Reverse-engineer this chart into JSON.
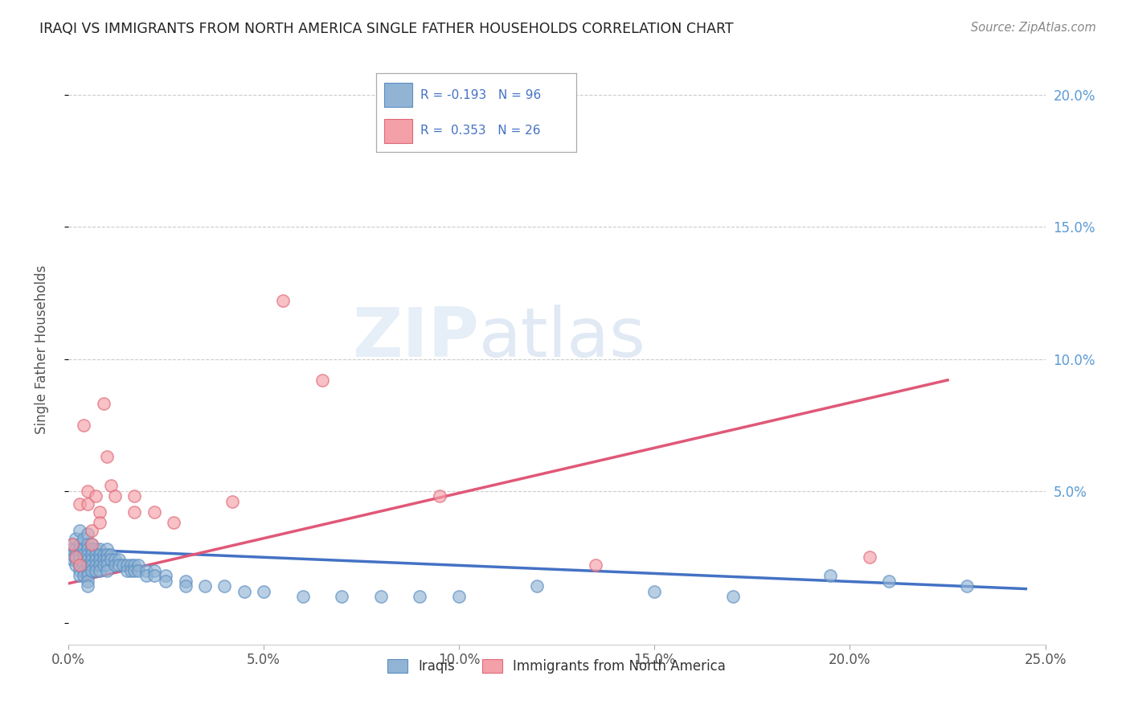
{
  "title": "IRAQI VS IMMIGRANTS FROM NORTH AMERICA SINGLE FATHER HOUSEHOLDS CORRELATION CHART",
  "source": "Source: ZipAtlas.com",
  "ylabel": "Single Father Households",
  "xlim": [
    0.0,
    0.25
  ],
  "ylim": [
    -0.008,
    0.215
  ],
  "yticks": [
    0.0,
    0.05,
    0.1,
    0.15,
    0.2
  ],
  "right_ytick_labels": [
    "",
    "5.0%",
    "10.0%",
    "15.0%",
    "20.0%"
  ],
  "xticks": [
    0.0,
    0.05,
    0.1,
    0.15,
    0.2,
    0.25
  ],
  "xtick_labels": [
    "0.0%",
    "5.0%",
    "10.0%",
    "15.0%",
    "20.0%",
    "25.0%"
  ],
  "iraqi_color": "#92b4d4",
  "immigrant_color": "#f4a0a8",
  "iraqi_edge_color": "#5b8fc4",
  "immigrant_edge_color": "#e06878",
  "iraqi_trend_color": "#4472c4",
  "immigrant_trend_color": "#e05878",
  "iraqi_r": -0.193,
  "iraqi_n": 96,
  "immigrant_r": 0.353,
  "immigrant_n": 26,
  "watermark_zip": "ZIP",
  "watermark_atlas": "atlas",
  "legend_r_color": "#4472c4",
  "legend_n_color": "#4472c4",
  "iraqi_scatter": [
    [
      0.001,
      0.03
    ],
    [
      0.001,
      0.028
    ],
    [
      0.001,
      0.026
    ],
    [
      0.001,
      0.024
    ],
    [
      0.002,
      0.032
    ],
    [
      0.002,
      0.028
    ],
    [
      0.002,
      0.026
    ],
    [
      0.002,
      0.024
    ],
    [
      0.002,
      0.022
    ],
    [
      0.003,
      0.035
    ],
    [
      0.003,
      0.03
    ],
    [
      0.003,
      0.028
    ],
    [
      0.003,
      0.026
    ],
    [
      0.003,
      0.024
    ],
    [
      0.003,
      0.022
    ],
    [
      0.003,
      0.02
    ],
    [
      0.003,
      0.018
    ],
    [
      0.004,
      0.032
    ],
    [
      0.004,
      0.028
    ],
    [
      0.004,
      0.026
    ],
    [
      0.004,
      0.024
    ],
    [
      0.004,
      0.022
    ],
    [
      0.004,
      0.02
    ],
    [
      0.004,
      0.018
    ],
    [
      0.005,
      0.034
    ],
    [
      0.005,
      0.03
    ],
    [
      0.005,
      0.028
    ],
    [
      0.005,
      0.026
    ],
    [
      0.005,
      0.024
    ],
    [
      0.005,
      0.022
    ],
    [
      0.005,
      0.02
    ],
    [
      0.005,
      0.018
    ],
    [
      0.005,
      0.016
    ],
    [
      0.005,
      0.014
    ],
    [
      0.006,
      0.03
    ],
    [
      0.006,
      0.028
    ],
    [
      0.006,
      0.026
    ],
    [
      0.006,
      0.024
    ],
    [
      0.006,
      0.022
    ],
    [
      0.006,
      0.02
    ],
    [
      0.007,
      0.028
    ],
    [
      0.007,
      0.026
    ],
    [
      0.007,
      0.024
    ],
    [
      0.007,
      0.022
    ],
    [
      0.007,
      0.02
    ],
    [
      0.008,
      0.028
    ],
    [
      0.008,
      0.026
    ],
    [
      0.008,
      0.024
    ],
    [
      0.008,
      0.022
    ],
    [
      0.008,
      0.02
    ],
    [
      0.009,
      0.026
    ],
    [
      0.009,
      0.024
    ],
    [
      0.009,
      0.022
    ],
    [
      0.01,
      0.028
    ],
    [
      0.01,
      0.026
    ],
    [
      0.01,
      0.024
    ],
    [
      0.01,
      0.022
    ],
    [
      0.01,
      0.02
    ],
    [
      0.011,
      0.026
    ],
    [
      0.011,
      0.024
    ],
    [
      0.012,
      0.024
    ],
    [
      0.012,
      0.022
    ],
    [
      0.013,
      0.024
    ],
    [
      0.013,
      0.022
    ],
    [
      0.014,
      0.022
    ],
    [
      0.015,
      0.022
    ],
    [
      0.015,
      0.02
    ],
    [
      0.016,
      0.022
    ],
    [
      0.016,
      0.02
    ],
    [
      0.017,
      0.022
    ],
    [
      0.017,
      0.02
    ],
    [
      0.018,
      0.022
    ],
    [
      0.018,
      0.02
    ],
    [
      0.02,
      0.02
    ],
    [
      0.02,
      0.018
    ],
    [
      0.022,
      0.02
    ],
    [
      0.022,
      0.018
    ],
    [
      0.025,
      0.018
    ],
    [
      0.025,
      0.016
    ],
    [
      0.03,
      0.016
    ],
    [
      0.03,
      0.014
    ],
    [
      0.035,
      0.014
    ],
    [
      0.04,
      0.014
    ],
    [
      0.045,
      0.012
    ],
    [
      0.05,
      0.012
    ],
    [
      0.06,
      0.01
    ],
    [
      0.07,
      0.01
    ],
    [
      0.08,
      0.01
    ],
    [
      0.09,
      0.01
    ],
    [
      0.1,
      0.01
    ],
    [
      0.12,
      0.014
    ],
    [
      0.15,
      0.012
    ],
    [
      0.17,
      0.01
    ],
    [
      0.195,
      0.018
    ],
    [
      0.21,
      0.016
    ],
    [
      0.23,
      0.014
    ]
  ],
  "immigrant_scatter": [
    [
      0.001,
      0.03
    ],
    [
      0.002,
      0.025
    ],
    [
      0.003,
      0.022
    ],
    [
      0.003,
      0.045
    ],
    [
      0.004,
      0.075
    ],
    [
      0.005,
      0.05
    ],
    [
      0.005,
      0.045
    ],
    [
      0.006,
      0.035
    ],
    [
      0.006,
      0.03
    ],
    [
      0.007,
      0.048
    ],
    [
      0.008,
      0.042
    ],
    [
      0.008,
      0.038
    ],
    [
      0.009,
      0.083
    ],
    [
      0.01,
      0.063
    ],
    [
      0.011,
      0.052
    ],
    [
      0.012,
      0.048
    ],
    [
      0.017,
      0.048
    ],
    [
      0.017,
      0.042
    ],
    [
      0.022,
      0.042
    ],
    [
      0.027,
      0.038
    ],
    [
      0.042,
      0.046
    ],
    [
      0.055,
      0.122
    ],
    [
      0.065,
      0.092
    ],
    [
      0.095,
      0.048
    ],
    [
      0.135,
      0.022
    ],
    [
      0.205,
      0.025
    ]
  ],
  "iraqi_trendline_x": [
    0.0,
    0.245
  ],
  "iraqi_trendline_y": [
    0.028,
    0.013
  ],
  "immigrant_trendline_x": [
    0.0,
    0.225
  ],
  "immigrant_trendline_y": [
    0.015,
    0.092
  ],
  "grid_color": "#e0e0e0",
  "dotted_line_color": "#c0c0c0"
}
